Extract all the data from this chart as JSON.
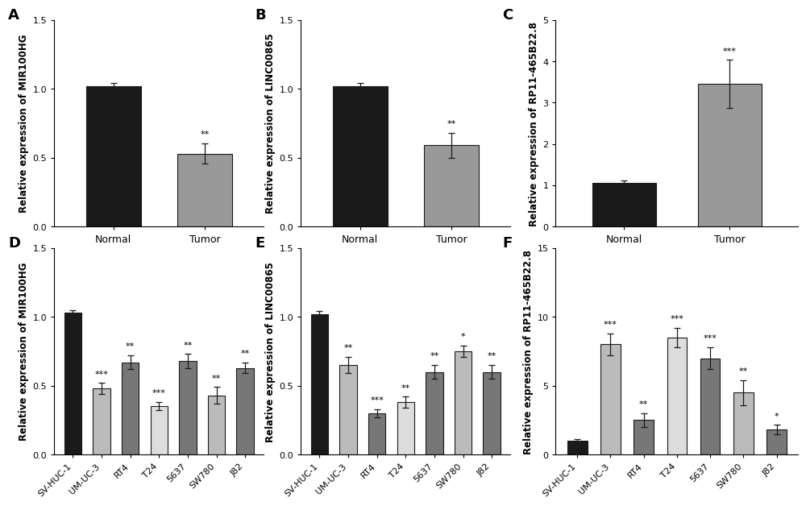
{
  "panel_A": {
    "label": "A",
    "categories": [
      "Normal",
      "Tumor"
    ],
    "values": [
      1.02,
      0.53
    ],
    "errors": [
      0.025,
      0.075
    ],
    "colors": [
      "#1a1a1a",
      "#999999"
    ],
    "ylabel": "Relative expression of MIR100HG",
    "ylim": [
      0,
      1.5
    ],
    "yticks": [
      0.0,
      0.5,
      1.0,
      1.5
    ],
    "ytick_labels": [
      "0.0",
      "0.5",
      "1.0",
      "1.5"
    ],
    "significance": [
      "",
      "**"
    ]
  },
  "panel_B": {
    "label": "B",
    "categories": [
      "Normal",
      "Tumor"
    ],
    "values": [
      1.02,
      0.59
    ],
    "errors": [
      0.02,
      0.09
    ],
    "colors": [
      "#1a1a1a",
      "#999999"
    ],
    "ylabel": "Relative expression of LINC00865",
    "ylim": [
      0,
      1.5
    ],
    "yticks": [
      0.0,
      0.5,
      1.0,
      1.5
    ],
    "ytick_labels": [
      "0.0",
      "0.5",
      "1.0",
      "1.5"
    ],
    "significance": [
      "",
      "**"
    ]
  },
  "panel_C": {
    "label": "C",
    "categories": [
      "Normal",
      "Tumor"
    ],
    "values": [
      1.05,
      3.45
    ],
    "errors": [
      0.06,
      0.58
    ],
    "colors": [
      "#1a1a1a",
      "#999999"
    ],
    "ylabel": "Relative expression of RP11-465B22.8",
    "ylim": [
      0,
      5
    ],
    "yticks": [
      0,
      1,
      2,
      3,
      4,
      5
    ],
    "ytick_labels": [
      "0",
      "1",
      "2",
      "3",
      "4",
      "5"
    ],
    "significance": [
      "",
      "***"
    ]
  },
  "panel_D": {
    "label": "D",
    "categories": [
      "SV-HUC-1",
      "UM-UC-3",
      "RT4",
      "T24",
      "5637",
      "SW780",
      "J82"
    ],
    "values": [
      1.03,
      0.48,
      0.67,
      0.35,
      0.68,
      0.43,
      0.63
    ],
    "errors": [
      0.02,
      0.04,
      0.05,
      0.03,
      0.05,
      0.06,
      0.04
    ],
    "colors": [
      "#1a1a1a",
      "#bbbbbb",
      "#777777",
      "#dddddd",
      "#777777",
      "#bbbbbb",
      "#777777"
    ],
    "ylabel": "Relative expression of MIR100HG",
    "ylim": [
      0,
      1.5
    ],
    "yticks": [
      0.0,
      0.5,
      1.0,
      1.5
    ],
    "ytick_labels": [
      "0.0",
      "0.5",
      "1.0",
      "1.5"
    ],
    "significance": [
      "",
      "***",
      "**",
      "***",
      "**",
      "**",
      "**"
    ]
  },
  "panel_E": {
    "label": "E",
    "categories": [
      "SV-HUC-1",
      "UM-UC-3",
      "RT4",
      "T24",
      "5637",
      "SW780",
      "J82"
    ],
    "values": [
      1.02,
      0.65,
      0.3,
      0.38,
      0.6,
      0.75,
      0.6
    ],
    "errors": [
      0.02,
      0.06,
      0.03,
      0.04,
      0.05,
      0.04,
      0.05
    ],
    "colors": [
      "#1a1a1a",
      "#bbbbbb",
      "#777777",
      "#dddddd",
      "#777777",
      "#bbbbbb",
      "#777777"
    ],
    "ylabel": "Relative expression of LINC00865",
    "ylim": [
      0,
      1.5
    ],
    "yticks": [
      0.0,
      0.5,
      1.0,
      1.5
    ],
    "ytick_labels": [
      "0.0",
      "0.5",
      "1.0",
      "1.5"
    ],
    "significance": [
      "",
      "**",
      "***",
      "**",
      "**",
      "*",
      "**"
    ]
  },
  "panel_F": {
    "label": "F",
    "categories": [
      "SV-HUC-1",
      "UM-UC-3",
      "RT4",
      "T24",
      "5637",
      "SW780",
      "J82"
    ],
    "values": [
      1.0,
      8.0,
      2.5,
      8.5,
      7.0,
      4.5,
      1.8
    ],
    "errors": [
      0.1,
      0.8,
      0.5,
      0.7,
      0.8,
      0.9,
      0.35
    ],
    "colors": [
      "#1a1a1a",
      "#bbbbbb",
      "#777777",
      "#dddddd",
      "#777777",
      "#bbbbbb",
      "#777777"
    ],
    "ylabel": "Relative expression of RP11-465B22.8",
    "ylim": [
      0,
      15
    ],
    "yticks": [
      0,
      5,
      10,
      15
    ],
    "ytick_labels": [
      "0",
      "5",
      "10",
      "15"
    ],
    "significance": [
      "",
      "***",
      "**",
      "***",
      "***",
      "**",
      "*"
    ]
  },
  "background_color": "#ffffff",
  "bar_edgecolor": "#1a1a1a",
  "errorbar_color": "#1a1a1a",
  "sig_fontsize": 8,
  "tick_fontsize": 8,
  "ylabel_fontsize": 8.5,
  "panel_label_fontsize": 13
}
